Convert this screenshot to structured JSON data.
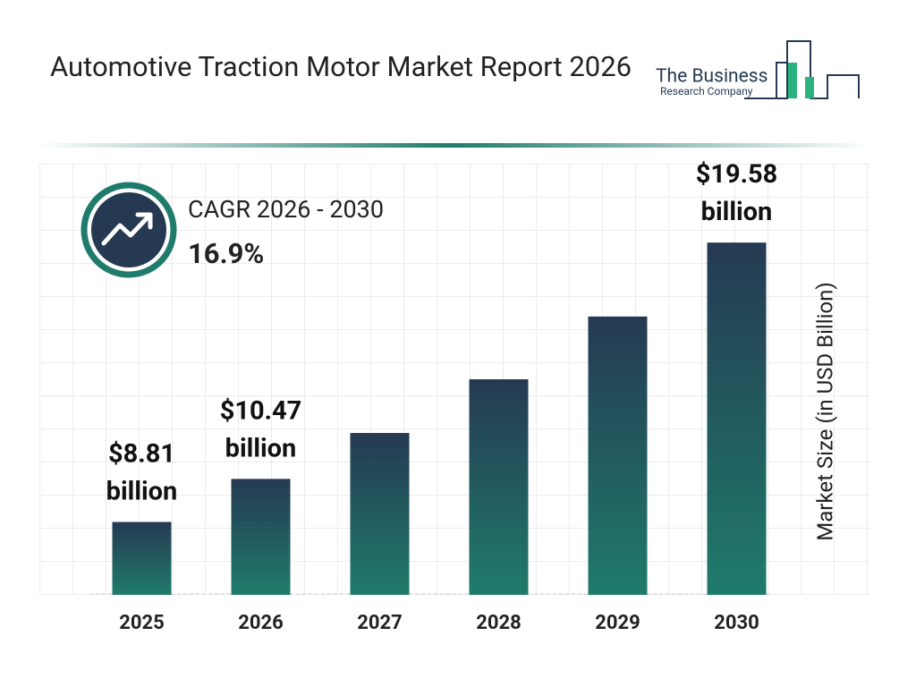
{
  "chart_data": {
    "type": "bar",
    "title": "Automotive Traction Motor Market Report 2026",
    "logo": [
      "The Business",
      "Research Company"
    ],
    "cagr_label": "CAGR 2026 - 2030",
    "cagr_value": "16.9%",
    "y_axis_label": "Market Size (in USD Billion)",
    "categories": [
      "2025",
      "2026",
      "2027",
      "2028",
      "2029",
      "2030"
    ],
    "values": [
      8.81,
      10.47,
      12.24,
      14.31,
      16.73,
      19.58
    ],
    "value_labels": [
      "$8.81 billion",
      "$10.47 billion",
      null,
      null,
      null,
      "$19.58 billion"
    ],
    "color": [
      "#253a52",
      "#1f7b6b"
    ],
    "ylim": [
      6,
      21
    ]
  }
}
